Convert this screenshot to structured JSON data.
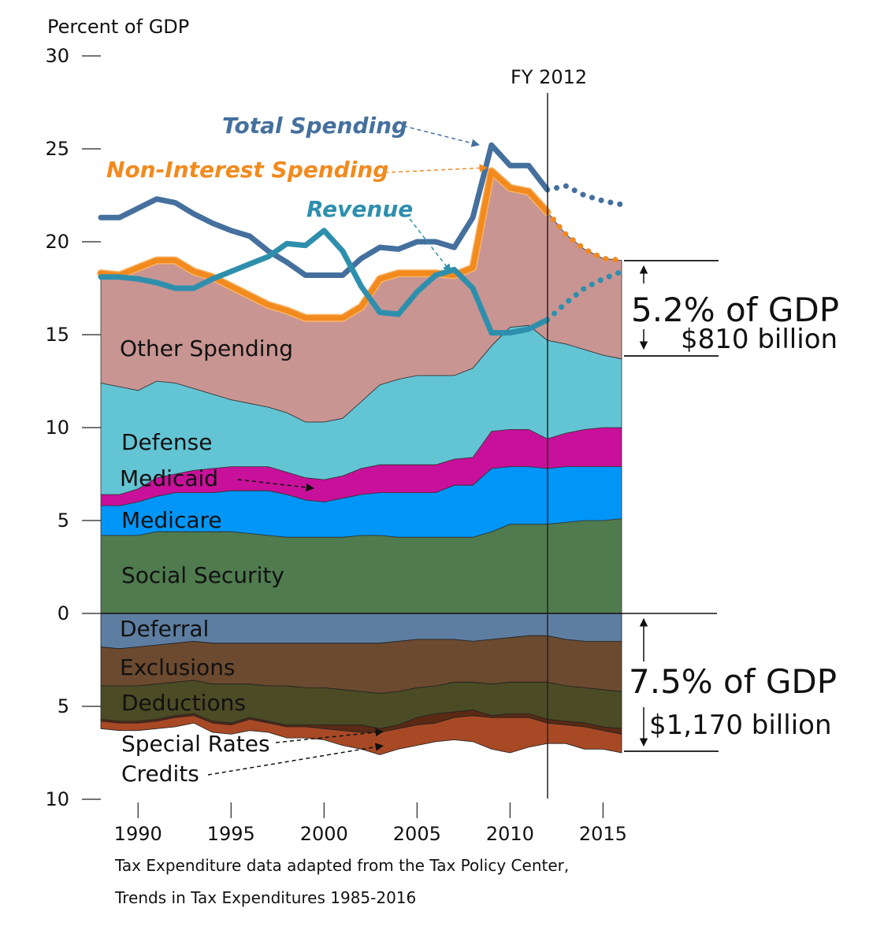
{
  "chart_data": {
    "type": "area",
    "ylabel": "Percent of GDP",
    "y_ticks_upper": [
      "30",
      "25",
      "20",
      "15",
      "10",
      "5",
      "0"
    ],
    "y_ticks_lower": [
      "5",
      "10"
    ],
    "x_ticks": [
      "1990",
      "1995",
      "2000",
      "2005",
      "2010",
      "2015"
    ],
    "xlim": [
      1988,
      2016
    ],
    "ylim_upper": [
      0,
      30
    ],
    "ylim_lower": [
      0,
      10
    ],
    "marker": {
      "label": "FY 2012",
      "x": 2012
    },
    "x": [
      1988,
      1989,
      1990,
      1991,
      1992,
      1993,
      1994,
      1995,
      1996,
      1997,
      1998,
      1999,
      2000,
      2001,
      2002,
      2003,
      2004,
      2005,
      2006,
      2007,
      2008,
      2009,
      2010,
      2011,
      2012,
      2013,
      2014,
      2015,
      2016
    ],
    "spending_stack": [
      {
        "name": "Social Security",
        "color": "#4f7b4e",
        "top": [
          4.2,
          4.2,
          4.2,
          4.4,
          4.4,
          4.4,
          4.4,
          4.4,
          4.3,
          4.2,
          4.1,
          4.1,
          4.1,
          4.1,
          4.2,
          4.2,
          4.1,
          4.1,
          4.1,
          4.1,
          4.1,
          4.4,
          4.8,
          4.8,
          4.8,
          4.9,
          5.0,
          5.0,
          5.1
        ]
      },
      {
        "name": "Medicare",
        "color": "#0096f8",
        "top": [
          5.8,
          5.8,
          6.0,
          6.3,
          6.5,
          6.5,
          6.5,
          6.6,
          6.6,
          6.6,
          6.4,
          6.1,
          6.0,
          6.2,
          6.4,
          6.5,
          6.5,
          6.5,
          6.5,
          6.9,
          6.9,
          7.8,
          7.9,
          7.9,
          7.8,
          7.9,
          7.9,
          7.9,
          7.9
        ]
      },
      {
        "name": "Medicaid",
        "color": "#c8109a",
        "top": [
          6.4,
          6.4,
          6.7,
          7.3,
          7.5,
          7.7,
          7.8,
          7.9,
          7.9,
          7.9,
          7.6,
          7.3,
          7.2,
          7.4,
          7.8,
          8.0,
          8.0,
          8.0,
          8.0,
          8.3,
          8.4,
          9.8,
          9.9,
          9.9,
          9.4,
          9.7,
          9.9,
          10.0,
          10.0
        ]
      },
      {
        "name": "Defense",
        "color": "#63c4d4",
        "top": [
          12.4,
          12.2,
          12.0,
          12.5,
          12.4,
          12.1,
          11.8,
          11.5,
          11.3,
          11.1,
          10.8,
          10.3,
          10.3,
          10.5,
          11.4,
          12.3,
          12.6,
          12.8,
          12.8,
          12.8,
          13.2,
          14.4,
          15.4,
          15.5,
          14.7,
          14.5,
          14.2,
          13.9,
          13.7
        ]
      },
      {
        "name": "Other Spending",
        "color": "#c89592",
        "top": [
          18.3,
          18.2,
          18.6,
          19.0,
          19.0,
          18.4,
          18.1,
          17.6,
          17.1,
          16.6,
          16.3,
          15.9,
          15.9,
          15.9,
          16.5,
          18.0,
          18.3,
          18.3,
          18.3,
          18.2,
          18.6,
          23.8,
          22.9,
          22.7,
          21.6,
          20.4,
          19.6,
          19.1,
          19.0
        ]
      }
    ],
    "tax_expenditure_stack": [
      {
        "name": "Deferral",
        "color": "#5d7ea1",
        "bottom": [
          1.8,
          1.9,
          1.8,
          1.7,
          1.6,
          1.5,
          1.6,
          1.6,
          1.6,
          1.6,
          1.6,
          1.6,
          1.6,
          1.6,
          1.6,
          1.6,
          1.5,
          1.4,
          1.4,
          1.4,
          1.5,
          1.4,
          1.3,
          1.2,
          1.2,
          1.4,
          1.5,
          1.5,
          1.5
        ]
      },
      {
        "name": "Exclusions",
        "color": "#6b4a2f",
        "bottom": [
          3.9,
          3.9,
          3.9,
          3.8,
          3.7,
          3.6,
          3.8,
          3.8,
          3.8,
          3.9,
          3.9,
          4.0,
          4.0,
          4.1,
          4.2,
          4.3,
          4.2,
          4.0,
          3.9,
          3.7,
          3.7,
          3.8,
          3.7,
          3.7,
          3.7,
          3.9,
          4.0,
          4.1,
          4.2
        ]
      },
      {
        "name": "Deductions",
        "color": "#4b4b25",
        "bottom": [
          5.7,
          5.8,
          5.8,
          5.7,
          5.5,
          5.4,
          5.8,
          5.9,
          5.6,
          5.8,
          6.0,
          6.0,
          6.0,
          6.0,
          6.0,
          6.2,
          6.0,
          5.6,
          5.4,
          5.3,
          5.2,
          5.5,
          5.4,
          5.4,
          5.7,
          5.8,
          5.9,
          6.1,
          6.2
        ]
      },
      {
        "name": "Special Rates",
        "color": "#5a2a14",
        "bottom": [
          5.8,
          5.9,
          5.9,
          5.8,
          5.6,
          5.5,
          5.9,
          6.0,
          5.7,
          5.9,
          6.1,
          6.1,
          6.2,
          6.3,
          6.4,
          6.4,
          6.2,
          6.0,
          5.9,
          5.6,
          5.5,
          5.6,
          5.6,
          5.6,
          5.9,
          6.0,
          6.1,
          6.3,
          6.5
        ]
      },
      {
        "name": "Credits",
        "color": "#a84925",
        "bottom": [
          6.2,
          6.3,
          6.3,
          6.2,
          6.1,
          5.9,
          6.4,
          6.5,
          6.3,
          6.4,
          6.7,
          6.7,
          6.8,
          7.1,
          7.3,
          7.6,
          7.3,
          7.1,
          6.9,
          6.8,
          6.9,
          7.3,
          7.5,
          7.2,
          7.0,
          7.0,
          7.3,
          7.3,
          7.5
        ]
      }
    ],
    "lines": [
      {
        "name": "Total Spending",
        "color": "#45709e",
        "label_color": "#45709e",
        "x": [
          1988,
          1989,
          1990,
          1991,
          1992,
          1993,
          1994,
          1995,
          1996,
          1997,
          1998,
          1999,
          2000,
          2001,
          2002,
          2003,
          2004,
          2005,
          2006,
          2007,
          2008,
          2009,
          2010,
          2011,
          2012
        ],
        "values": [
          21.3,
          21.3,
          21.8,
          22.3,
          22.1,
          21.5,
          21.0,
          20.6,
          20.3,
          19.5,
          18.9,
          18.2,
          18.2,
          18.2,
          19.1,
          19.7,
          19.6,
          20.0,
          20.0,
          19.7,
          21.3,
          25.2,
          24.1,
          24.1,
          22.8
        ],
        "projected_x": [
          2012,
          2013,
          2014,
          2015,
          2016
        ],
        "projected": [
          22.8,
          23.0,
          22.5,
          22.2,
          22.0
        ]
      },
      {
        "name": "Non-Interest Spending",
        "color": "#f28a1e",
        "label_color": "#f28a1e",
        "x": [
          1988,
          1989,
          1990,
          1991,
          1992,
          1993,
          1994,
          1995,
          1996,
          1997,
          1998,
          1999,
          2000,
          2001,
          2002,
          2003,
          2004,
          2005,
          2006,
          2007,
          2008,
          2009,
          2010,
          2011,
          2012
        ],
        "values": [
          18.3,
          18.2,
          18.6,
          19.0,
          19.0,
          18.4,
          18.1,
          17.6,
          17.1,
          16.6,
          16.3,
          15.9,
          15.9,
          15.9,
          16.5,
          18.0,
          18.3,
          18.3,
          18.3,
          18.2,
          18.6,
          23.8,
          22.9,
          22.7,
          21.6
        ],
        "projected_x": [
          2012,
          2013,
          2014,
          2015,
          2016
        ],
        "projected": [
          21.6,
          20.4,
          19.6,
          19.1,
          19.0
        ]
      },
      {
        "name": "Revenue",
        "color": "#2e8fad",
        "label_color": "#2e8fad",
        "x": [
          1988,
          1989,
          1990,
          1991,
          1992,
          1993,
          1994,
          1995,
          1996,
          1997,
          1998,
          1999,
          2000,
          2001,
          2002,
          2003,
          2004,
          2005,
          2006,
          2007,
          2008,
          2009,
          2010,
          2011,
          2012
        ],
        "values": [
          18.1,
          18.1,
          18.0,
          17.8,
          17.5,
          17.5,
          18.0,
          18.4,
          18.8,
          19.2,
          19.9,
          19.8,
          20.6,
          19.5,
          17.6,
          16.2,
          16.1,
          17.3,
          18.2,
          18.5,
          17.5,
          15.1,
          15.1,
          15.3,
          15.8
        ],
        "projected_x": [
          2012,
          2013,
          2014,
          2015,
          2016
        ],
        "projected": [
          15.8,
          16.7,
          17.5,
          18.0,
          18.4
        ]
      }
    ],
    "area_labels": {
      "other_spending": "Other Spending",
      "defense": "Defense",
      "medicaid": "Medicaid",
      "medicare": "Medicare",
      "social_security": "Social Security",
      "deferral": "Deferral",
      "exclusions": "Exclusions",
      "deductions": "Deductions",
      "special_rates": "Special Rates",
      "credits": "Credits"
    },
    "annotations": {
      "gap_upper_pct": "5.2% of GDP",
      "gap_upper_dollars": "$810 billion",
      "gap_lower_pct": "7.5% of GDP",
      "gap_lower_dollars": "$1,170 billion"
    },
    "source_line1": "Tax Expenditure data adapted from the Tax Policy Center,",
    "source_line2": "Trends in Tax Expenditures 1985-2016"
  }
}
